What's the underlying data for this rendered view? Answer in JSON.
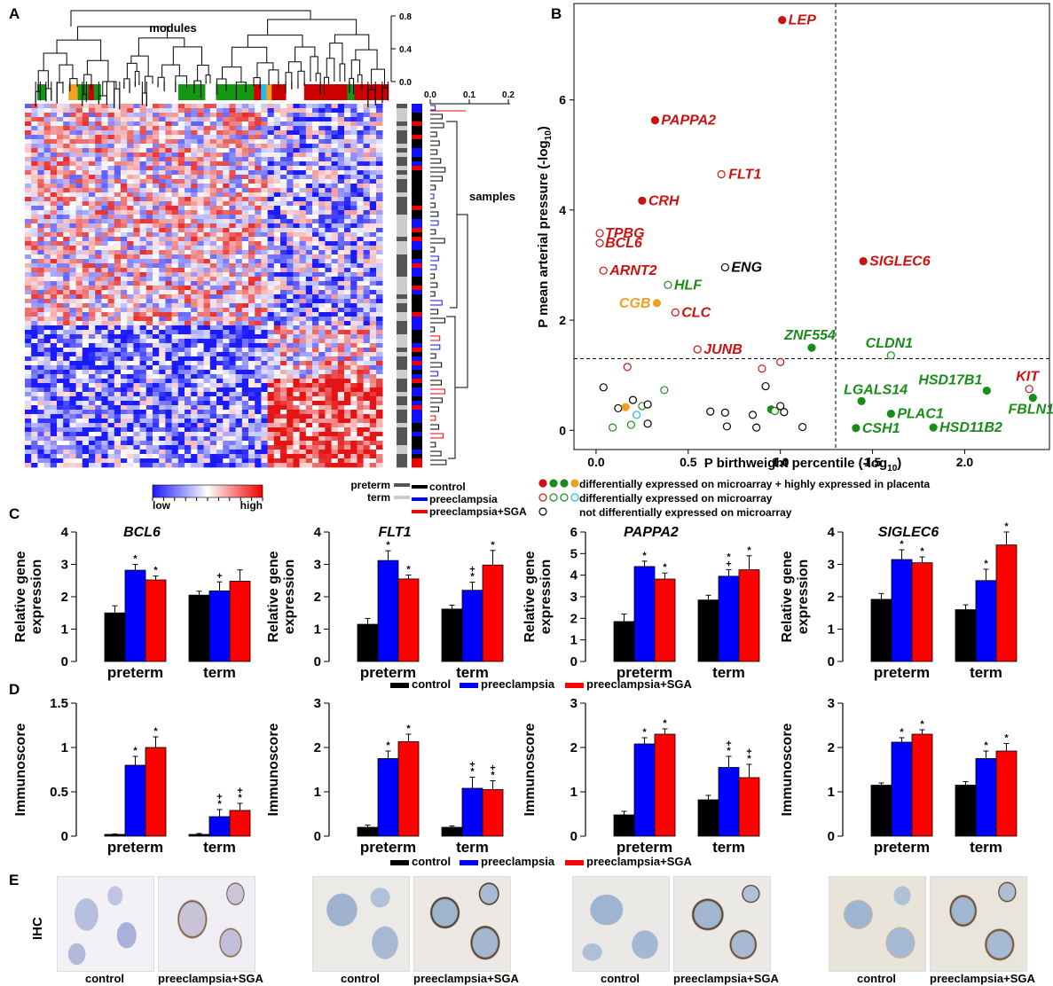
{
  "panel_labels": [
    "A",
    "B",
    "C",
    "D",
    "E"
  ],
  "panelA": {
    "modules_label": "modules",
    "samples_label": "samples",
    "module_tree_ticks": [
      "0.8",
      "0.4",
      "0.0"
    ],
    "sample_tree_ticks": [
      "0.0",
      "0.1",
      "0.2"
    ],
    "module_colors": [
      "green",
      "white",
      "orange",
      "green",
      "red",
      "green",
      "white",
      "white",
      "green",
      "white",
      "green",
      "red",
      "cyan",
      "orange",
      "red",
      "white",
      "red",
      "green",
      "red"
    ],
    "colorbar_low": "low",
    "colorbar_high": "high",
    "legend_preterm": "preterm",
    "legend_term": "term",
    "legend_groups": [
      {
        "label": "control",
        "color": "#000000"
      },
      {
        "label": "preeclampsia",
        "color": "#0000ff"
      },
      {
        "label": "preeclampsia+SGA",
        "color": "#ff0000"
      }
    ],
    "colors": {
      "low": "#1a1aff",
      "mid": "#ffffff",
      "high": "#ee0000",
      "preterm": "#555555",
      "term": "#cccccc"
    }
  },
  "chart_data": [
    {
      "id": "B",
      "type": "scatter",
      "xlabel": "P birthweight percentile (-log",
      "ylabel": "P mean arterial pressure (-log",
      "label_subscript": "10",
      "label_suffix": ")",
      "xlim": [
        -0.12,
        2.46
      ],
      "ylim": [
        -0.35,
        7.75
      ],
      "xticks": [
        "0.0",
        "0.5",
        "1.0",
        "1.5",
        "2.0"
      ],
      "yticks": [
        "0",
        "2",
        "4",
        "6"
      ],
      "threshold_x": 1.3,
      "threshold_y": 1.3,
      "labeled_points": [
        {
          "name": "LEP",
          "x": 1.01,
          "y": 7.45,
          "color": "#cc1111",
          "filled": true
        },
        {
          "name": "PAPPA2",
          "x": 0.32,
          "y": 5.63,
          "color": "#cc1111",
          "filled": true
        },
        {
          "name": "FLT1",
          "x": 0.68,
          "y": 4.65,
          "color": "#cc1111",
          "filled": false
        },
        {
          "name": "CRH",
          "x": 0.25,
          "y": 4.17,
          "color": "#cc1111",
          "filled": true
        },
        {
          "name": "TPBG",
          "x": 0.02,
          "y": 3.58,
          "color": "#cc1111",
          "filled": false
        },
        {
          "name": "BCL6",
          "x": 0.02,
          "y": 3.4,
          "color": "#cc1111",
          "filled": false
        },
        {
          "name": "ARNT2",
          "x": 0.04,
          "y": 2.9,
          "color": "#cc1111",
          "filled": false
        },
        {
          "name": "ENG",
          "x": 0.7,
          "y": 2.96,
          "color": "#000000",
          "filled": false
        },
        {
          "name": "SIGLEC6",
          "x": 1.45,
          "y": 3.07,
          "color": "#cc1111",
          "filled": true
        },
        {
          "name": "HLF",
          "x": 0.39,
          "y": 2.64,
          "color": "#1a8c1a",
          "filled": false
        },
        {
          "name": "CGB",
          "x": 0.33,
          "y": 2.31,
          "color": "#f0a020",
          "filled": true
        },
        {
          "name": "CLC",
          "x": 0.43,
          "y": 2.14,
          "color": "#cc1111",
          "filled": false
        },
        {
          "name": "JUNB",
          "x": 0.55,
          "y": 1.47,
          "color": "#cc1111",
          "filled": false
        },
        {
          "name": "ZNF554",
          "x": 1.17,
          "y": 1.5,
          "color": "#1a8c1a",
          "filled": true
        },
        {
          "name": "CLDN1",
          "x": 1.6,
          "y": 1.36,
          "color": "#1a8c1a",
          "filled": false
        },
        {
          "name": "HSD17B1",
          "x": 2.12,
          "y": 0.72,
          "color": "#1a8c1a",
          "filled": true
        },
        {
          "name": "KIT",
          "x": 2.35,
          "y": 0.75,
          "color": "#cc1111",
          "filled": false
        },
        {
          "name": "LGALS14",
          "x": 1.44,
          "y": 0.53,
          "color": "#1a8c1a",
          "filled": true
        },
        {
          "name": "FBLN1",
          "x": 2.37,
          "y": 0.59,
          "color": "#1a8c1a",
          "filled": true
        },
        {
          "name": "PLAC1",
          "x": 1.6,
          "y": 0.3,
          "color": "#1a8c1a",
          "filled": true
        },
        {
          "name": "CSH1",
          "x": 1.41,
          "y": 0.04,
          "color": "#1a8c1a",
          "filled": true
        },
        {
          "name": "HSD11B2",
          "x": 1.83,
          "y": 0.05,
          "color": "#1a8c1a",
          "filled": true
        }
      ],
      "other_points": [
        {
          "x": 0.17,
          "y": 1.15,
          "color": "#cc1111",
          "filled": false
        },
        {
          "x": 0.9,
          "y": 1.12,
          "color": "#cc1111",
          "filled": false
        },
        {
          "x": 1.0,
          "y": 1.24,
          "color": "#cc1111",
          "filled": false
        },
        {
          "x": 0.37,
          "y": 0.73,
          "color": "#1a8c1a",
          "filled": false
        },
        {
          "x": 0.04,
          "y": 0.78,
          "color": "#000000",
          "filled": false
        },
        {
          "x": 0.12,
          "y": 0.4,
          "color": "#000000",
          "filled": false
        },
        {
          "x": 0.19,
          "y": 0.1,
          "color": "#1a8c1a",
          "filled": false
        },
        {
          "x": 0.2,
          "y": 0.55,
          "color": "#000000",
          "filled": false
        },
        {
          "x": 0.25,
          "y": 0.44,
          "color": "#1a8c1a",
          "filled": false
        },
        {
          "x": 0.28,
          "y": 0.47,
          "color": "#000000",
          "filled": false
        },
        {
          "x": 0.28,
          "y": 0.12,
          "color": "#000000",
          "filled": false
        },
        {
          "x": 0.22,
          "y": 0.28,
          "color": "#22bbee",
          "filled": false
        },
        {
          "x": 0.16,
          "y": 0.42,
          "color": "#f0a020",
          "filled": true
        },
        {
          "x": 0.09,
          "y": 0.05,
          "color": "#1a8c1a",
          "filled": false
        },
        {
          "x": 0.62,
          "y": 0.34,
          "color": "#000000",
          "filled": false
        },
        {
          "x": 0.7,
          "y": 0.32,
          "color": "#000000",
          "filled": false
        },
        {
          "x": 0.71,
          "y": 0.07,
          "color": "#000000",
          "filled": false
        },
        {
          "x": 0.85,
          "y": 0.28,
          "color": "#000000",
          "filled": false
        },
        {
          "x": 0.87,
          "y": 0.05,
          "color": "#000000",
          "filled": false
        },
        {
          "x": 0.95,
          "y": 0.38,
          "color": "#1a8c1a",
          "filled": true
        },
        {
          "x": 0.97,
          "y": 0.35,
          "color": "#1a8c1a",
          "filled": false
        },
        {
          "x": 1.0,
          "y": 0.44,
          "color": "#000000",
          "filled": false
        },
        {
          "x": 1.02,
          "y": 0.33,
          "color": "#000000",
          "filled": false
        },
        {
          "x": 0.92,
          "y": 0.8,
          "color": "#000000",
          "filled": false
        },
        {
          "x": 1.12,
          "y": 0.06,
          "color": "#000000",
          "filled": false
        }
      ],
      "legend": [
        {
          "dots": [
            "#cc1111",
            "#1a8c1a",
            "#1a8c1a",
            "#f0a020"
          ],
          "filled": true,
          "text": "differentially expressed on microarray + highly expressed in placenta"
        },
        {
          "dots": [
            "#cc1111",
            "#1a8c1a",
            "#1a8c1a",
            "#22bbee"
          ],
          "filled": false,
          "text": "differentially expressed on microarray"
        },
        {
          "dots": [
            "#000000"
          ],
          "filled": false,
          "text": "not differentially expressed on microarray"
        }
      ]
    },
    {
      "id": "C",
      "type": "bar",
      "ylabel_lines": [
        "Relative gene",
        "expression"
      ],
      "categories": [
        "preterm",
        "term"
      ],
      "series_names": [
        "control",
        "preeclampsia",
        "preeclampsia+SGA"
      ],
      "series_colors": [
        "#000000",
        "#0000ff",
        "#ff0000"
      ],
      "charts": [
        {
          "title": "BCL6",
          "ylim": [
            0,
            4
          ],
          "yticks": [
            "0",
            "1",
            "2",
            "3",
            "4"
          ],
          "values": [
            [
              1.5,
              2.82,
              2.52
            ],
            [
              2.05,
              2.18,
              2.48
            ]
          ],
          "errors": [
            [
              0.22,
              0.18,
              0.12
            ],
            [
              0.12,
              0.28,
              0.35
            ]
          ],
          "marks": [
            [
              "",
              "*",
              "*"
            ],
            [
              "",
              "+",
              ""
            ]
          ]
        },
        {
          "title": "FLT1",
          "ylim": [
            0,
            4
          ],
          "yticks": [
            "0",
            "1",
            "2",
            "3",
            "4"
          ],
          "values": [
            [
              1.15,
              3.12,
              2.55
            ],
            [
              1.62,
              2.2,
              2.98
            ]
          ],
          "errors": [
            [
              0.18,
              0.3,
              0.12
            ],
            [
              0.12,
              0.25,
              0.45
            ]
          ],
          "marks": [
            [
              "",
              "*",
              "*"
            ],
            [
              "",
              "+\n*",
              "*"
            ]
          ]
        },
        {
          "title": "PAPPA2",
          "ylim": [
            0,
            6
          ],
          "yticks": [
            "0",
            "1",
            "2",
            "3",
            "4",
            "5",
            "6"
          ],
          "values": [
            [
              1.85,
              4.4,
              3.82
            ],
            [
              2.85,
              3.95,
              4.25
            ]
          ],
          "errors": [
            [
              0.35,
              0.25,
              0.28
            ],
            [
              0.22,
              0.3,
              0.65
            ]
          ],
          "marks": [
            [
              "",
              "*",
              "*"
            ],
            [
              "",
              "*\n+",
              "*"
            ]
          ]
        },
        {
          "title": "SIGLEC6",
          "ylim": [
            0,
            4
          ],
          "yticks": [
            "0",
            "1",
            "2",
            "3",
            "4"
          ],
          "values": [
            [
              1.92,
              3.15,
              3.05
            ],
            [
              1.6,
              2.5,
              3.6
            ]
          ],
          "errors": [
            [
              0.18,
              0.3,
              0.18
            ],
            [
              0.15,
              0.35,
              0.4
            ]
          ],
          "marks": [
            [
              "",
              "*",
              "*"
            ],
            [
              "",
              "*",
              "*"
            ]
          ]
        }
      ],
      "legend": [
        "control",
        "preeclampsia",
        "preeclampsia+SGA"
      ]
    },
    {
      "id": "D",
      "type": "bar",
      "ylabel_lines": [
        "Immunoscore"
      ],
      "categories": [
        "preterm",
        "term"
      ],
      "series_names": [
        "control",
        "preeclampsia",
        "preeclampsia+SGA"
      ],
      "series_colors": [
        "#000000",
        "#0000ff",
        "#ff0000"
      ],
      "charts": [
        {
          "title": "",
          "ylim": [
            0,
            1.5
          ],
          "yticks": [
            "0",
            "0.5",
            "1",
            "1.5"
          ],
          "values": [
            [
              0.02,
              0.8,
              1.0
            ],
            [
              0.02,
              0.22,
              0.29
            ]
          ],
          "errors": [
            [
              0.005,
              0.1,
              0.12
            ],
            [
              0.01,
              0.08,
              0.08
            ]
          ],
          "marks": [
            [
              "",
              "*",
              "*"
            ],
            [
              "",
              "+\n*",
              "+\n*"
            ]
          ]
        },
        {
          "title": "",
          "ylim": [
            0,
            3
          ],
          "yticks": [
            "0",
            "1",
            "2",
            "3"
          ],
          "values": [
            [
              0.2,
              1.75,
              2.13
            ],
            [
              0.2,
              1.08,
              1.05
            ]
          ],
          "errors": [
            [
              0.05,
              0.17,
              0.17
            ],
            [
              0.03,
              0.25,
              0.2
            ]
          ],
          "marks": [
            [
              "",
              "*",
              "*"
            ],
            [
              "",
              "+\n*",
              "+\n*"
            ]
          ]
        },
        {
          "title": "",
          "ylim": [
            0,
            3
          ],
          "yticks": [
            "0",
            "1",
            "2",
            "3"
          ],
          "values": [
            [
              0.48,
              2.08,
              2.3
            ],
            [
              0.82,
              1.55,
              1.32
            ]
          ],
          "errors": [
            [
              0.08,
              0.14,
              0.12
            ],
            [
              0.1,
              0.25,
              0.3
            ]
          ],
          "marks": [
            [
              "",
              "*",
              "*"
            ],
            [
              "",
              "+\n*",
              "+\n*"
            ]
          ]
        },
        {
          "title": "",
          "ylim": [
            0,
            3
          ],
          "yticks": [
            "0",
            "1",
            "2",
            "3"
          ],
          "values": [
            [
              1.15,
              2.12,
              2.3
            ],
            [
              1.15,
              1.75,
              1.92
            ]
          ],
          "errors": [
            [
              0.05,
              0.1,
              0.1
            ],
            [
              0.08,
              0.17,
              0.17
            ]
          ],
          "marks": [
            [
              "",
              "*",
              "*"
            ],
            [
              "",
              "*",
              "*"
            ]
          ]
        }
      ],
      "legend": [
        "control",
        "preeclampsia",
        "preeclampsia+SGA"
      ]
    }
  ],
  "panelE": {
    "row_label": "IHC",
    "captions": [
      "control",
      "preeclampsia+SGA",
      "control",
      "preeclampsia+SGA",
      "control",
      "preeclampsia+SGA",
      "control",
      "preeclampsia+SGA"
    ]
  }
}
